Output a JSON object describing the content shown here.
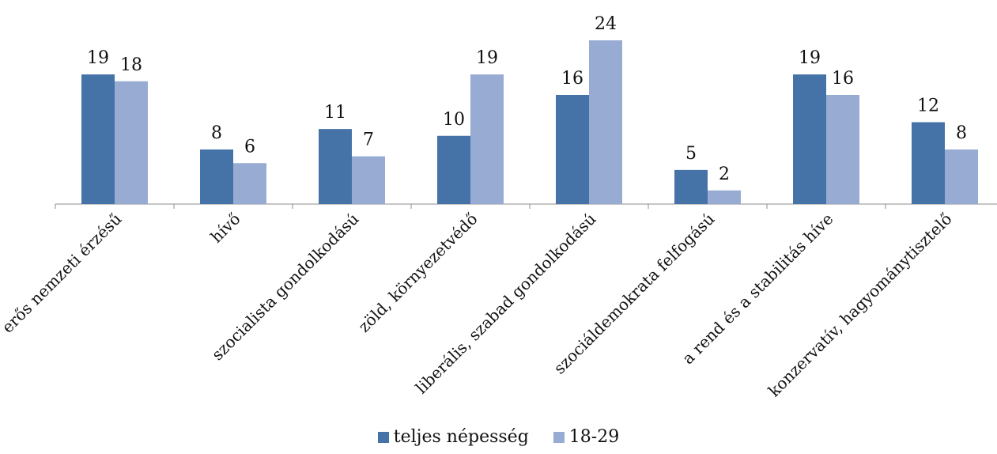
{
  "chart_data": {
    "type": "bar",
    "categories": [
      "erős nemzeti érzésű",
      "hívő",
      "szocialista gondolkodású",
      "zöld, környezetvédő",
      "liberális, szabad gondolkodású",
      "szociáldemokrata felfogású",
      "a rend és a stabilitás híve",
      "konzervatív, hagyománytisztelő"
    ],
    "series": [
      {
        "name": "teljes népesség",
        "color": "#4572A7",
        "values": [
          19,
          8,
          11,
          10,
          16,
          5,
          19,
          12
        ]
      },
      {
        "name": "18-29",
        "color": "#98ACD3",
        "values": [
          18,
          6,
          7,
          19,
          24,
          2,
          16,
          8
        ]
      }
    ],
    "ylim": [
      0,
      24
    ],
    "grid": false,
    "data_labels": true,
    "legend_position": "bottom"
  }
}
